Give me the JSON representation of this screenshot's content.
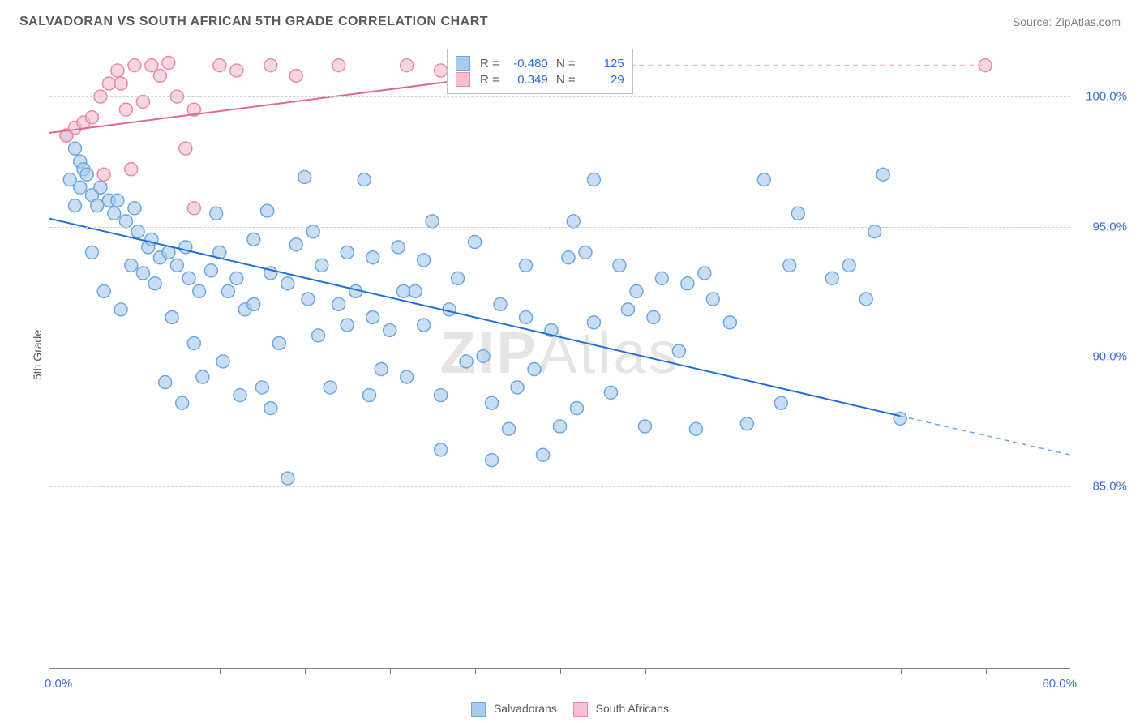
{
  "header": {
    "title": "SALVADORAN VS SOUTH AFRICAN 5TH GRADE CORRELATION CHART",
    "source": "Source: ZipAtlas.com"
  },
  "chart": {
    "type": "scatter",
    "ylabel": "5th Grade",
    "xlim": [
      0,
      60
    ],
    "ylim": [
      78,
      102
    ],
    "ytick_values": [
      85,
      90,
      95,
      100
    ],
    "ytick_labels": [
      "85.0%",
      "90.0%",
      "95.0%",
      "100.0%"
    ],
    "xaxis_left_label": "0.0%",
    "xaxis_right_label": "60.0%",
    "xtick_positions": [
      5,
      10,
      15,
      20,
      25,
      30,
      35,
      40,
      45,
      50,
      55
    ],
    "background_color": "#ffffff",
    "grid_color": "#d0d0d0",
    "marker_radius": 8,
    "marker_stroke_width": 1.5,
    "line_width": 2,
    "watermark": "ZIPAtlas",
    "series": {
      "salvadorans": {
        "label": "Salvadorans",
        "fill": "#a9cced",
        "stroke": "#6ea7df",
        "fill_opacity": 0.65,
        "r_value": "-0.480",
        "n_value": "125",
        "regression": {
          "x1": 0,
          "y1": 95.3,
          "x2": 50,
          "y2": 87.7,
          "color": "#1f6fd6"
        },
        "regression_ext": {
          "x1": 50,
          "y1": 87.7,
          "x2": 60,
          "y2": 86.2,
          "color": "#6ea7df"
        },
        "points": [
          [
            1,
            98.5
          ],
          [
            1.5,
            98
          ],
          [
            1.8,
            97.5
          ],
          [
            2,
            97.2
          ],
          [
            2.2,
            97
          ],
          [
            1.2,
            96.8
          ],
          [
            1.8,
            96.5
          ],
          [
            2.5,
            96.2
          ],
          [
            3,
            96.5
          ],
          [
            3.5,
            96
          ],
          [
            2.8,
            95.8
          ],
          [
            3.8,
            95.5
          ],
          [
            4,
            96
          ],
          [
            4.5,
            95.2
          ],
          [
            5,
            95.7
          ],
          [
            5.2,
            94.8
          ],
          [
            5.8,
            94.2
          ],
          [
            4.8,
            93.5
          ],
          [
            6,
            94.5
          ],
          [
            6.5,
            93.8
          ],
          [
            7,
            94
          ],
          [
            7.5,
            93.5
          ],
          [
            8,
            94.2
          ],
          [
            8.2,
            93
          ],
          [
            8.8,
            92.5
          ],
          [
            9.5,
            93.3
          ],
          [
            6.2,
            92.8
          ],
          [
            7.2,
            91.5
          ],
          [
            5.5,
            93.2
          ],
          [
            4.2,
            91.8
          ],
          [
            10,
            94
          ],
          [
            10.5,
            92.5
          ],
          [
            11,
            93
          ],
          [
            11.5,
            91.8
          ],
          [
            12,
            94.5
          ],
          [
            12,
            92
          ],
          [
            13,
            93.2
          ],
          [
            13.5,
            90.5
          ],
          [
            14,
            92.8
          ],
          [
            14.5,
            94.3
          ],
          [
            15,
            96.9
          ],
          [
            15.2,
            92.2
          ],
          [
            15.8,
            90.8
          ],
          [
            16,
            93.5
          ],
          [
            16.5,
            88.8
          ],
          [
            17,
            92
          ],
          [
            17.5,
            94
          ],
          [
            18,
            92.5
          ],
          [
            18.5,
            96.8
          ],
          [
            19,
            93.8
          ],
          [
            19.5,
            89.5
          ],
          [
            20,
            91
          ],
          [
            20.5,
            94.2
          ],
          [
            21,
            89.2
          ],
          [
            21.5,
            92.5
          ],
          [
            22,
            91.2
          ],
          [
            22.5,
            95.2
          ],
          [
            23,
            88.5
          ],
          [
            23.5,
            91.8
          ],
          [
            24,
            93
          ],
          [
            24.5,
            89.8
          ],
          [
            25,
            94.4
          ],
          [
            25.5,
            90
          ],
          [
            26,
            88.2
          ],
          [
            26.5,
            92
          ],
          [
            27,
            87.2
          ],
          [
            27.5,
            88.8
          ],
          [
            28,
            91.5
          ],
          [
            28.5,
            89.5
          ],
          [
            29,
            86.2
          ],
          [
            29.5,
            91
          ],
          [
            30,
            87.3
          ],
          [
            30.5,
            93.8
          ],
          [
            31,
            88
          ],
          [
            14,
            85.3
          ],
          [
            13,
            88
          ],
          [
            12.5,
            88.8
          ],
          [
            11.2,
            88.5
          ],
          [
            10.2,
            89.8
          ],
          [
            9,
            89.2
          ],
          [
            8.5,
            90.5
          ],
          [
            7.8,
            88.2
          ],
          [
            6.8,
            89
          ],
          [
            32,
            91.3
          ],
          [
            33,
            88.6
          ],
          [
            34,
            91.8
          ],
          [
            35,
            87.3
          ],
          [
            38,
            87.2
          ],
          [
            26,
            86
          ],
          [
            23,
            86.4
          ],
          [
            32,
            96.8
          ],
          [
            31.5,
            94
          ],
          [
            33.5,
            93.5
          ],
          [
            34.5,
            92.5
          ],
          [
            35.5,
            91.5
          ],
          [
            36,
            93
          ],
          [
            37,
            90.2
          ],
          [
            37.5,
            92.8
          ],
          [
            38.5,
            93.2
          ],
          [
            39,
            92.2
          ],
          [
            40,
            91.3
          ],
          [
            41,
            87.4
          ],
          [
            42,
            96.8
          ],
          [
            43,
            88.2
          ],
          [
            43.5,
            93.5
          ],
          [
            44,
            95.5
          ],
          [
            46,
            93
          ],
          [
            47,
            93.5
          ],
          [
            48,
            92.2
          ],
          [
            48.5,
            94.8
          ],
          [
            49,
            97
          ],
          [
            50,
            87.6
          ],
          [
            17.5,
            91.2
          ],
          [
            18.8,
            88.5
          ],
          [
            20.8,
            92.5
          ],
          [
            22,
            93.7
          ],
          [
            3.2,
            92.5
          ],
          [
            2.5,
            94
          ],
          [
            1.5,
            95.8
          ],
          [
            19,
            91.5
          ],
          [
            28,
            93.5
          ],
          [
            30.8,
            95.2
          ],
          [
            15.5,
            94.8
          ],
          [
            12.8,
            95.6
          ],
          [
            9.8,
            95.5
          ]
        ]
      },
      "south_africans": {
        "label": "South Africans",
        "fill": "#f5c0d0",
        "stroke": "#e88aa8",
        "fill_opacity": 0.65,
        "r_value": "0.349",
        "n_value": "29",
        "regression": {
          "x1": 0,
          "y1": 98.6,
          "x2": 31,
          "y2": 101.2,
          "color": "#e06890"
        },
        "regression_ext": {
          "x1": 31,
          "y1": 101.2,
          "x2": 55,
          "y2": 101.2,
          "color": "#f0b0c5"
        },
        "points": [
          [
            1,
            98.5
          ],
          [
            1.5,
            98.8
          ],
          [
            2,
            99
          ],
          [
            2.5,
            99.2
          ],
          [
            3,
            100
          ],
          [
            3.5,
            100.5
          ],
          [
            4,
            101
          ],
          [
            4.5,
            99.5
          ],
          [
            5,
            101.2
          ],
          [
            5.5,
            99.8
          ],
          [
            6,
            101.2
          ],
          [
            6.5,
            100.8
          ],
          [
            7,
            101.3
          ],
          [
            7.5,
            100
          ],
          [
            8,
            98
          ],
          [
            8.5,
            99.5
          ],
          [
            3.2,
            97
          ],
          [
            4.2,
            100.5
          ],
          [
            10,
            101.2
          ],
          [
            11,
            101
          ],
          [
            13,
            101.2
          ],
          [
            14.5,
            100.8
          ],
          [
            17,
            101.2
          ],
          [
            8.5,
            95.7
          ],
          [
            4.8,
            97.2
          ],
          [
            21,
            101.2
          ],
          [
            23,
            101
          ],
          [
            30,
            101.2
          ],
          [
            55,
            101.2
          ]
        ]
      }
    }
  },
  "bottom_legend": {
    "salvadorans": "Salvadorans",
    "south_africans": "South Africans"
  }
}
